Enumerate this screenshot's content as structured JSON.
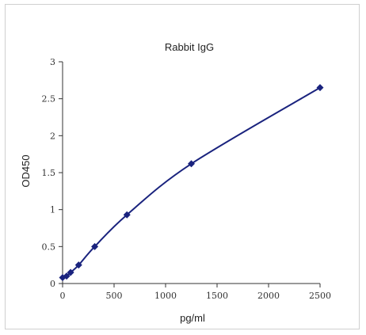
{
  "chart_data": {
    "type": "line",
    "title": "Rabbit IgG",
    "xlabel": "pg/ml",
    "ylabel": "OD450",
    "xlim": [
      0,
      2500
    ],
    "ylim": [
      0,
      3
    ],
    "xticks": [
      "0",
      "500",
      "1000",
      "1500",
      "2000",
      "2500"
    ],
    "yticks": [
      "0",
      "0.5",
      "1",
      "1.5",
      "2",
      "2.5",
      "3"
    ],
    "grid": false,
    "legend": "none",
    "series": [
      {
        "x": [
          0,
          39,
          78,
          156,
          312,
          625,
          1250,
          2500
        ],
        "y": [
          0.08,
          0.1,
          0.15,
          0.25,
          0.5,
          0.93,
          1.62,
          2.65
        ]
      }
    ],
    "colors": {
      "line": "#1a237e",
      "marker": "#1a237e",
      "axis": "#333333"
    }
  }
}
